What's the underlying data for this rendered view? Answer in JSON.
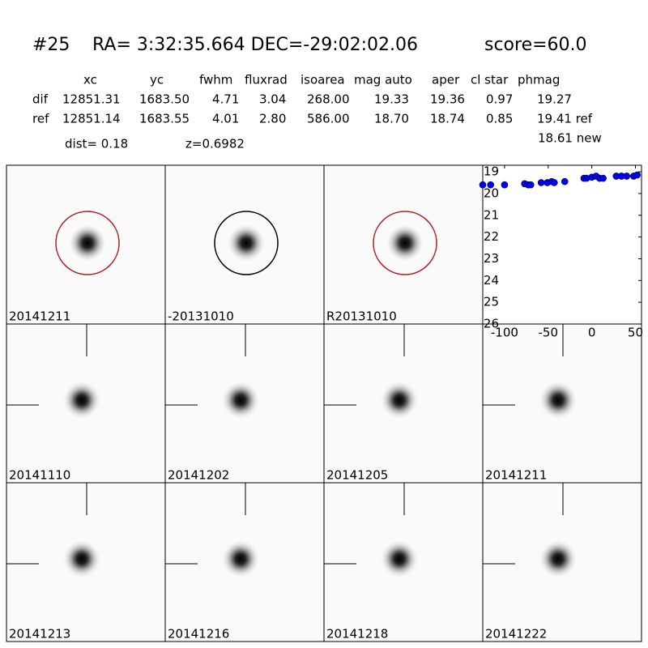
{
  "header": {
    "id": "#25",
    "coords": "RA= 3:32:35.664 DEC=-29:02:02.06",
    "score": "score=60.0"
  },
  "table": {
    "columns": [
      "xc",
      "yc",
      "fwhm",
      "fluxrad",
      "isoarea",
      "mag auto",
      "aper",
      "cl star",
      "phmag"
    ],
    "rows": [
      [
        "dif",
        "12851.31",
        "1683.50",
        "4.71",
        "3.04",
        "268.00",
        "19.33",
        "19.36",
        "0.97",
        "19.27"
      ],
      [
        "ref",
        "12851.14",
        "1683.55",
        "4.01",
        "2.80",
        "586.00",
        "18.70",
        "18.74",
        "0.85",
        "19.41 ref"
      ]
    ],
    "dist": "dist=  0.18",
    "z": "z=0.6982",
    "new": "18.61 new"
  },
  "panels": [
    {
      "label": "20141211",
      "circle_color": "#b22222"
    },
    {
      "label": "-20131010",
      "circle_color": "#000000"
    },
    {
      "label": "R20131010",
      "circle_color": "#b22222"
    },
    {
      "label": "20141110"
    },
    {
      "label": "20141202"
    },
    {
      "label": "20141205"
    },
    {
      "label": "20141211",
      "label_color": "#ff0000"
    },
    {
      "label": "20141213"
    },
    {
      "label": "20141216"
    },
    {
      "label": "20141218"
    },
    {
      "label": "20141222"
    }
  ],
  "chart_data": {
    "type": "scatter",
    "color": "#0000ff",
    "x": [
      -125,
      -116,
      -100,
      -77,
      -73,
      -70,
      -58,
      -51,
      -46,
      -43,
      -31,
      -9,
      -6,
      0,
      5,
      9,
      13,
      28,
      34,
      40,
      48,
      52
    ],
    "values": [
      19.6,
      19.6,
      19.6,
      19.55,
      19.6,
      19.6,
      19.5,
      19.5,
      19.45,
      19.5,
      19.45,
      19.3,
      19.3,
      19.25,
      19.2,
      19.3,
      19.3,
      19.2,
      19.2,
      19.2,
      19.2,
      19.15
    ],
    "xlim": [
      -125,
      57
    ],
    "ylim": [
      26,
      18.7
    ],
    "xticks": [
      -100,
      -50,
      0,
      50
    ],
    "yticks": [
      19,
      20,
      21,
      22,
      23,
      24,
      25,
      26
    ]
  }
}
